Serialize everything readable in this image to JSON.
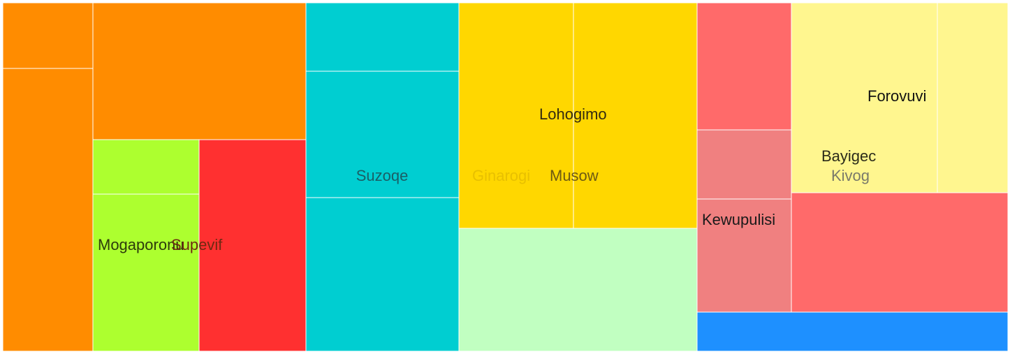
{
  "chart_data": {
    "type": "treemap",
    "title": "",
    "nodes": [
      {
        "id": "n-orange-1",
        "value": 12.2,
        "color": "#ff8c00",
        "label": ""
      },
      {
        "id": "n-orange-2",
        "value": 38.7,
        "color": "#ff8c00",
        "label": ""
      },
      {
        "id": "n-orange-3",
        "value": 52.0,
        "color": "#ff8c00",
        "label": ""
      },
      {
        "id": "n-mogaporonu-top",
        "value": 11.8,
        "color": "#adff2f",
        "label": ""
      },
      {
        "id": "n-mogaporonu",
        "value": 34.5,
        "color": "#adff2f",
        "label": "Mogaporonu"
      },
      {
        "id": "n-supevif",
        "value": 46.8,
        "color": "#ff3030",
        "label": "Supevif"
      },
      {
        "id": "n-suzoqe-top",
        "value": 21.2,
        "color": "#00ced1",
        "label": ""
      },
      {
        "id": "n-suzoqe-mid",
        "value": 38.8,
        "color": "#00ced1",
        "label": ""
      },
      {
        "id": "n-suzoqe",
        "value": 46.2,
        "color": "#00ced1",
        "label": "Suzoqe"
      },
      {
        "id": "n-ginarogi",
        "value": 52.4,
        "color": "#ffd700",
        "label": "Ginarogi"
      },
      {
        "id": "n-musow",
        "value": 55.6,
        "color": "#ffd700",
        "label": "Musow"
      },
      {
        "id": "n-lohogimo",
        "value": 58.5,
        "color": "#c1ffc1",
        "label": "Lohogimo"
      },
      {
        "id": "n-red-1",
        "value": 24.3,
        "color": "#ff6a6a",
        "label": ""
      },
      {
        "id": "n-kewupulisi-top",
        "value": 13.4,
        "color": "#f08080",
        "label": ""
      },
      {
        "id": "n-kewupulisi",
        "value": 21.3,
        "color": "#f08080",
        "label": "Kewupulisi"
      },
      {
        "id": "n-bayigec",
        "value": 54.9,
        "color": "#fff68f",
        "label": "Bayigec"
      },
      {
        "id": "n-forovuvi",
        "value": 26.9,
        "color": "#fff68f",
        "label": "Forovuvi"
      },
      {
        "id": "n-kivog",
        "value": 53.4,
        "color": "#ff6a6a",
        "label": "Kivog"
      },
      {
        "id": "n-blue",
        "value": 25.6,
        "color": "#1e90ff",
        "label": ""
      }
    ]
  }
}
